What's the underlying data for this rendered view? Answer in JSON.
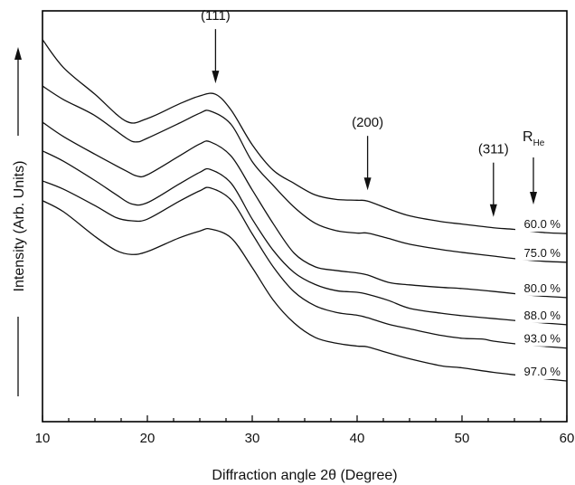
{
  "chart_data": {
    "type": "line",
    "title": "",
    "xlabel": "Diffraction angle 2θ (Degree)",
    "ylabel": "Intensity (Arb. Units)",
    "xlim": [
      10,
      60
    ],
    "x_ticks": [
      "10",
      "20",
      "30",
      "40",
      "50",
      "60"
    ],
    "y_ticks_shown": false,
    "grid": false,
    "legend_header": {
      "main": "R",
      "sub": "He"
    },
    "series": [
      {
        "name": "60.0 %",
        "points": [
          [
            10,
            0.93
          ],
          [
            12,
            0.862
          ],
          [
            15,
            0.797
          ],
          [
            18,
            0.731
          ],
          [
            20,
            0.738
          ],
          [
            23,
            0.773
          ],
          [
            25,
            0.793
          ],
          [
            26.5,
            0.797
          ],
          [
            28,
            0.758
          ],
          [
            30,
            0.674
          ],
          [
            32,
            0.612
          ],
          [
            34,
            0.58
          ],
          [
            36,
            0.552
          ],
          [
            38,
            0.541
          ],
          [
            40,
            0.539
          ],
          [
            41,
            0.537
          ],
          [
            43,
            0.518
          ],
          [
            45,
            0.501
          ],
          [
            48,
            0.487
          ],
          [
            50,
            0.481
          ],
          [
            53,
            0.472
          ],
          [
            55,
            0.468
          ],
          [
            58,
            0.46
          ],
          [
            60,
            0.458
          ]
        ]
      },
      {
        "name": "75.0 %",
        "points": [
          [
            10,
            0.817
          ],
          [
            12,
            0.784
          ],
          [
            15,
            0.745
          ],
          [
            18,
            0.69
          ],
          [
            19,
            0.681
          ],
          [
            20,
            0.69
          ],
          [
            23,
            0.726
          ],
          [
            25,
            0.751
          ],
          [
            26,
            0.756
          ],
          [
            28,
            0.723
          ],
          [
            30,
            0.633
          ],
          [
            32,
            0.575
          ],
          [
            34,
            0.522
          ],
          [
            36,
            0.483
          ],
          [
            38,
            0.465
          ],
          [
            40,
            0.459
          ],
          [
            41,
            0.459
          ],
          [
            43,
            0.446
          ],
          [
            45,
            0.432
          ],
          [
            48,
            0.419
          ],
          [
            50,
            0.412
          ],
          [
            53,
            0.403
          ],
          [
            56,
            0.394
          ],
          [
            58,
            0.39
          ],
          [
            60,
            0.388
          ]
        ]
      },
      {
        "name": "80.0 %",
        "points": [
          [
            10,
            0.729
          ],
          [
            12,
            0.694
          ],
          [
            15,
            0.651
          ],
          [
            18,
            0.61
          ],
          [
            19,
            0.598
          ],
          [
            20,
            0.601
          ],
          [
            23,
            0.646
          ],
          [
            25,
            0.676
          ],
          [
            26,
            0.681
          ],
          [
            28,
            0.646
          ],
          [
            30,
            0.564
          ],
          [
            32,
            0.482
          ],
          [
            34,
            0.41
          ],
          [
            36,
            0.377
          ],
          [
            38,
            0.368
          ],
          [
            40,
            0.362
          ],
          [
            41,
            0.357
          ],
          [
            43,
            0.339
          ],
          [
            45,
            0.333
          ],
          [
            48,
            0.327
          ],
          [
            50,
            0.324
          ],
          [
            53,
            0.317
          ],
          [
            56,
            0.309
          ],
          [
            58,
            0.305
          ],
          [
            60,
            0.302
          ]
        ]
      },
      {
        "name": "88.0 %",
        "points": [
          [
            10,
            0.659
          ],
          [
            12,
            0.634
          ],
          [
            15,
            0.587
          ],
          [
            17,
            0.553
          ],
          [
            18.5,
            0.53
          ],
          [
            20,
            0.533
          ],
          [
            23,
            0.578
          ],
          [
            25,
            0.607
          ],
          [
            26,
            0.614
          ],
          [
            28,
            0.58
          ],
          [
            30,
            0.493
          ],
          [
            32,
            0.417
          ],
          [
            34,
            0.363
          ],
          [
            36,
            0.334
          ],
          [
            38,
            0.319
          ],
          [
            40,
            0.315
          ],
          [
            41,
            0.31
          ],
          [
            43,
            0.295
          ],
          [
            45,
            0.276
          ],
          [
            48,
            0.264
          ],
          [
            50,
            0.258
          ],
          [
            53,
            0.251
          ],
          [
            56,
            0.244
          ],
          [
            58,
            0.24
          ],
          [
            60,
            0.236
          ]
        ]
      },
      {
        "name": "93.0 %",
        "points": [
          [
            10,
            0.586
          ],
          [
            12,
            0.566
          ],
          [
            15,
            0.526
          ],
          [
            17,
            0.497
          ],
          [
            18.5,
            0.489
          ],
          [
            20,
            0.493
          ],
          [
            23,
            0.536
          ],
          [
            25,
            0.562
          ],
          [
            26,
            0.569
          ],
          [
            28,
            0.539
          ],
          [
            30,
            0.457
          ],
          [
            32,
            0.377
          ],
          [
            34,
            0.316
          ],
          [
            36,
            0.282
          ],
          [
            38,
            0.266
          ],
          [
            40,
            0.259
          ],
          [
            41,
            0.253
          ],
          [
            43,
            0.237
          ],
          [
            45,
            0.226
          ],
          [
            48,
            0.21
          ],
          [
            50,
            0.203
          ],
          [
            52,
            0.201
          ],
          [
            53,
            0.196
          ],
          [
            56,
            0.187
          ],
          [
            58,
            0.183
          ],
          [
            60,
            0.179
          ]
        ]
      },
      {
        "name": "97.0 %",
        "points": [
          [
            10,
            0.538
          ],
          [
            12,
            0.511
          ],
          [
            15,
            0.451
          ],
          [
            17,
            0.417
          ],
          [
            18.5,
            0.407
          ],
          [
            20,
            0.414
          ],
          [
            23,
            0.447
          ],
          [
            25,
            0.464
          ],
          [
            26,
            0.469
          ],
          [
            28,
            0.447
          ],
          [
            30,
            0.375
          ],
          [
            32,
            0.296
          ],
          [
            34,
            0.24
          ],
          [
            36,
            0.205
          ],
          [
            38,
            0.191
          ],
          [
            40,
            0.184
          ],
          [
            41,
            0.182
          ],
          [
            43,
            0.167
          ],
          [
            45,
            0.153
          ],
          [
            48,
            0.136
          ],
          [
            50,
            0.131
          ],
          [
            53,
            0.12
          ],
          [
            56,
            0.111
          ],
          [
            58,
            0.104
          ],
          [
            60,
            0.099
          ]
        ]
      }
    ],
    "annotations": [
      {
        "text": "(111)",
        "x": 26.5
      },
      {
        "text": "(200)",
        "x": 41
      },
      {
        "text": "(311)",
        "x": 53
      }
    ]
  }
}
